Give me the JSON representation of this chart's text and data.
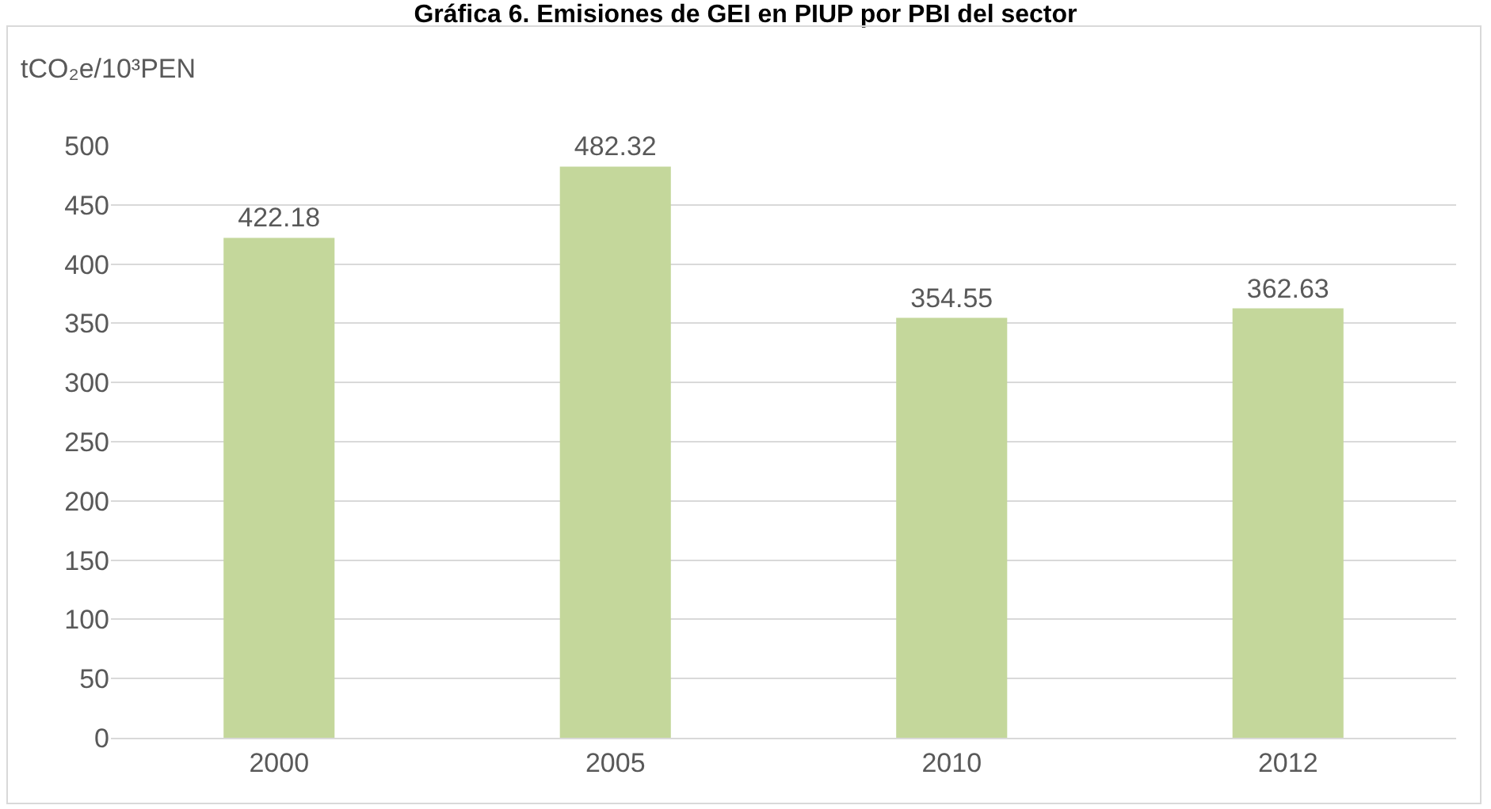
{
  "chart_data": {
    "type": "bar",
    "title": "Gráfica 6. Emisiones de GEI en PIUP por PBI del sector",
    "ylabel": "tCO₂e/10³PEN",
    "categories": [
      "2000",
      "2005",
      "2010",
      "2012"
    ],
    "values": [
      422.18,
      482.32,
      354.55,
      362.63
    ],
    "color": "#c4d79b",
    "ylim": [
      0,
      500
    ],
    "yticks": [
      0,
      50,
      100,
      150,
      200,
      250,
      300,
      350,
      400,
      450,
      500
    ],
    "grid": "y",
    "data_labels": true,
    "legend": false
  }
}
